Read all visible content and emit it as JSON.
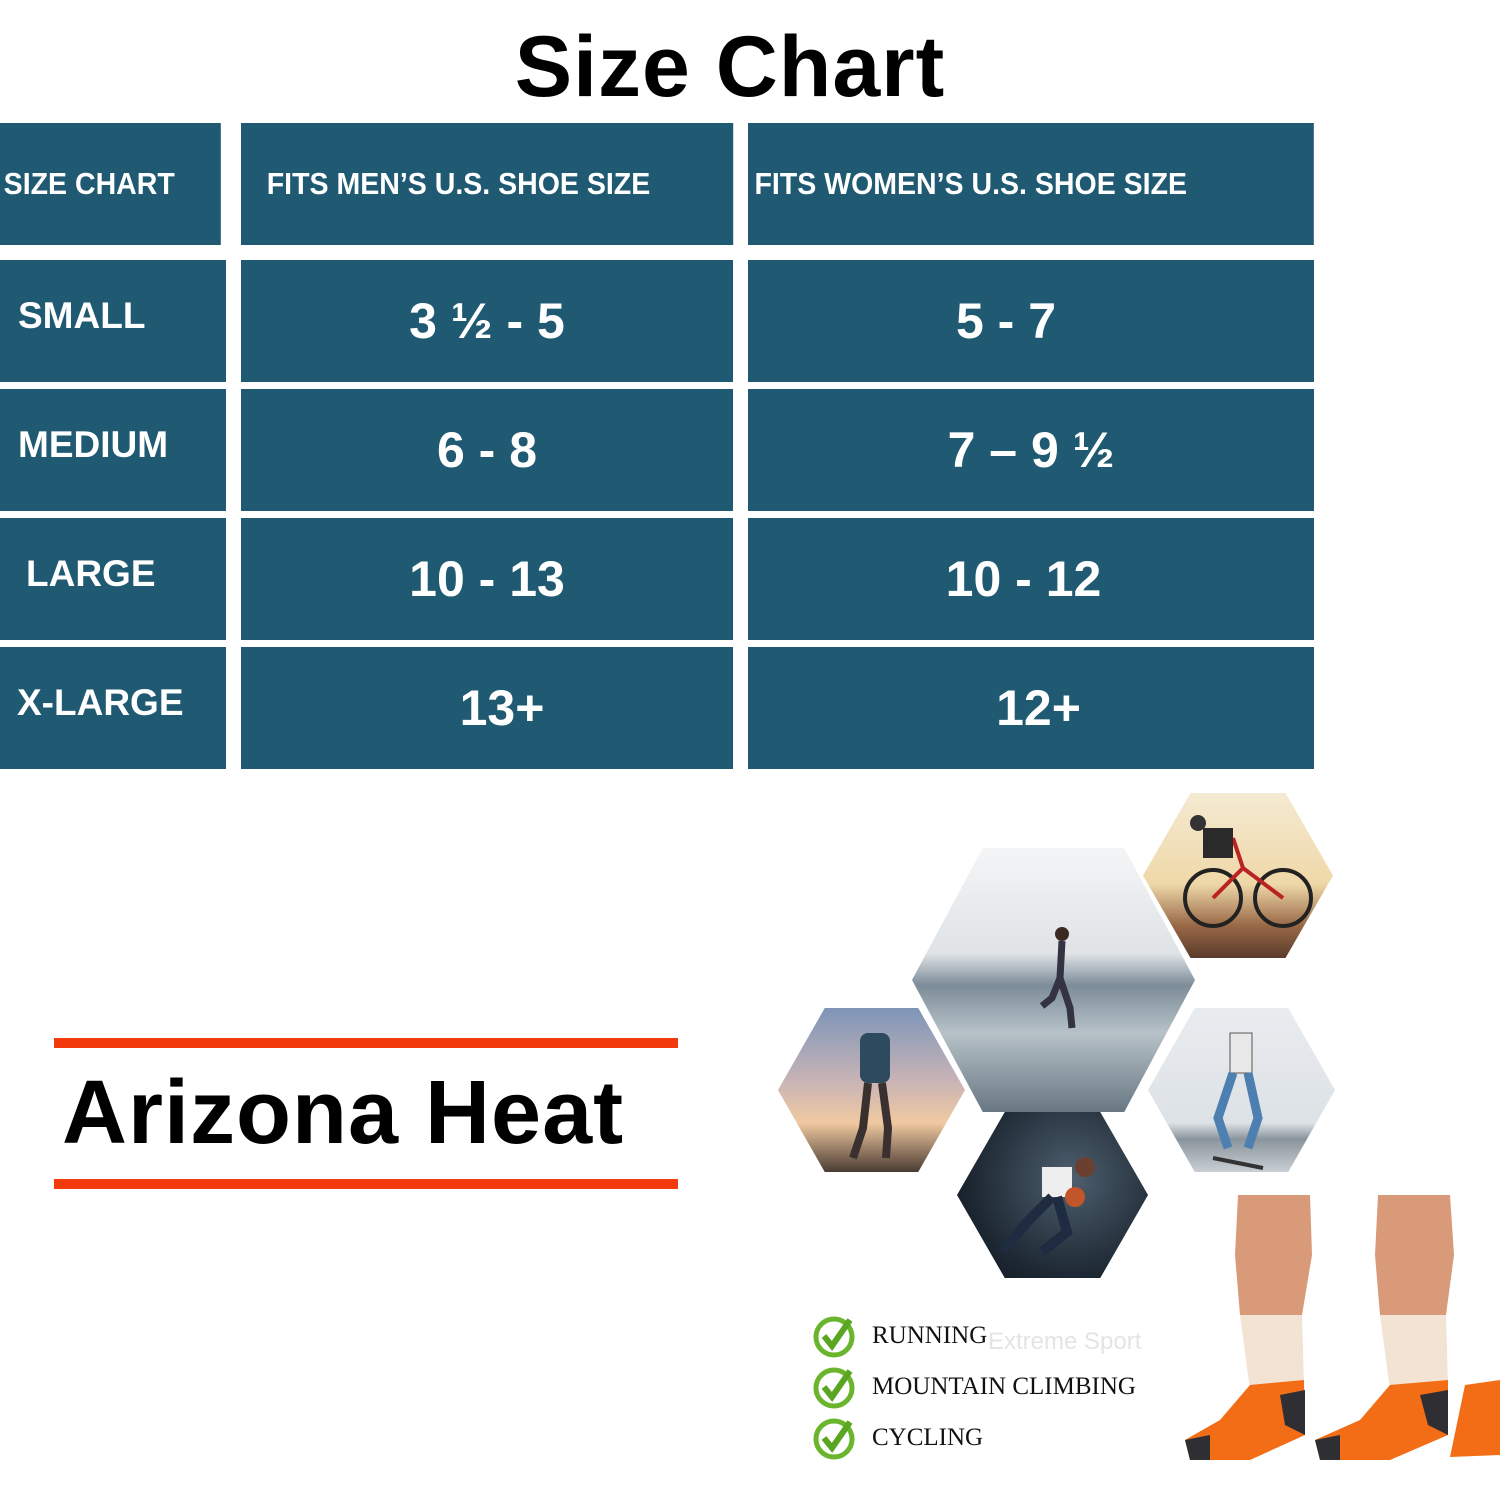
{
  "title": "Size Chart",
  "table": {
    "headers": [
      "SIZE CHART",
      "FITS MEN’S U.S. SHOE SIZE",
      "FITS WOMEN’S U.S. SHOE SIZE"
    ],
    "rows": [
      {
        "size": "SMALL",
        "men": "3 ½ - 5",
        "women": "5 - 7"
      },
      {
        "size": "MEDIUM",
        "men": "6 - 8",
        "women": "7 – 9 ½"
      },
      {
        "size": "LARGE",
        "men": "10 - 13",
        "women": "10 - 12"
      },
      {
        "size": "X-LARGE",
        "men": "13+",
        "women": "12+"
      }
    ],
    "cell_color": "#1f5a72"
  },
  "brand": {
    "name": "Arizona Heat",
    "accent_color": "#f33a0c"
  },
  "activities": {
    "items": [
      "RUNNING",
      "MOUNTAIN CLIMBING",
      "CYCLING"
    ],
    "icon": "green-check-circle-icon",
    "watermark": "Extreme Sport"
  }
}
